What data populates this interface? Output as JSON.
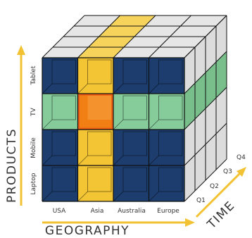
{
  "products": {
    "title": "PRODUCTS",
    "items": [
      "Laptop",
      "Mobile",
      "TV",
      "Tablet"
    ],
    "highlighted": "TV"
  },
  "geography": {
    "title": "GEOGRAPHY",
    "items": [
      "USA",
      "Asia",
      "Australia",
      "Europe"
    ],
    "highlighted": "Asia"
  },
  "time": {
    "title": "TIME",
    "items": [
      "Q1",
      "Q2",
      "Q3",
      "Q4"
    ]
  },
  "colors": {
    "navy": "#1c3d6e",
    "navy_top": "#27487a",
    "grey_face": "#dcdcdc",
    "grey_top": "#e6e6e6",
    "yellow": "#f3c534",
    "yellow_top": "#f6d35b",
    "green": "#86cc9a",
    "green_side": "#79bf8c",
    "orange_hot": "#f27f14",
    "orange_rim": "#ec5a15",
    "axis_arrow": "#f2c232",
    "axis_text": "#333333",
    "tick_text": "#333333",
    "grid_line": "#111111"
  }
}
